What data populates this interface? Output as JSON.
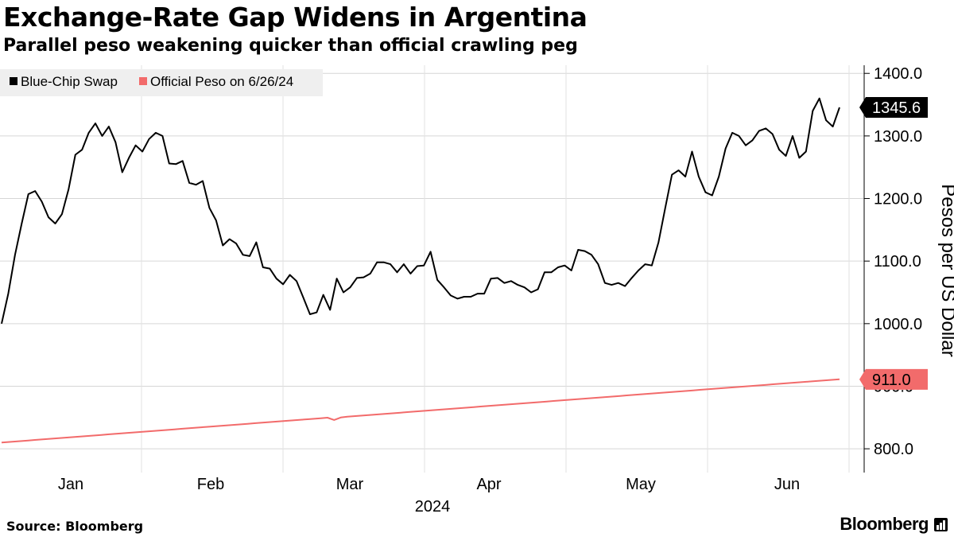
{
  "header": {
    "title": "Exchange-Rate Gap Widens in Argentina",
    "subtitle": "Parallel peso weakening quicker than official crawling peg"
  },
  "footer": {
    "source": "Source: Bloomberg",
    "brand": "Bloomberg"
  },
  "chart_data": {
    "type": "line",
    "title": "Exchange-Rate Gap Widens in Argentina",
    "subtitle": "Parallel peso weakening quicker than official crawling peg",
    "xlabel": "2024",
    "ylabel": "Pesos per US Dollar",
    "ylim": [
      762,
      1413
    ],
    "yticks": [
      800,
      900,
      1000,
      1100,
      1200,
      1300,
      1400
    ],
    "ytick_labels": [
      "800.0",
      "900.0",
      "1000.0",
      "1100.0",
      "1200.0",
      "1300.0",
      "1400.0"
    ],
    "xtick_labels": [
      "Jan",
      "Feb",
      "Mar",
      "Apr",
      "May",
      "Jun"
    ],
    "x_axis_year": "2024",
    "legend_position": "top-left",
    "grid": true,
    "series": [
      {
        "name": "Blue-Chip Swap",
        "color": "#000000",
        "last_value_label": "1345.6",
        "values": [
          1000,
          1048,
          1110,
          1160,
          1207,
          1212,
          1195,
          1170,
          1160,
          1175,
          1215,
          1270,
          1278,
          1305,
          1320,
          1300,
          1315,
          1290,
          1242,
          1265,
          1285,
          1275,
          1295,
          1305,
          1300,
          1256,
          1255,
          1260,
          1225,
          1222,
          1228,
          1185,
          1165,
          1125,
          1135,
          1128,
          1110,
          1108,
          1130,
          1090,
          1088,
          1072,
          1063,
          1078,
          1068,
          1042,
          1015,
          1018,
          1046,
          1022,
          1072,
          1050,
          1058,
          1073,
          1074,
          1080,
          1098,
          1098,
          1095,
          1082,
          1095,
          1080,
          1092,
          1093,
          1115,
          1070,
          1058,
          1045,
          1040,
          1043,
          1043,
          1048,
          1048,
          1072,
          1073,
          1065,
          1068,
          1062,
          1058,
          1050,
          1055,
          1082,
          1082,
          1090,
          1093,
          1085,
          1118,
          1116,
          1110,
          1095,
          1065,
          1062,
          1065,
          1060,
          1073,
          1085,
          1095,
          1093,
          1130,
          1185,
          1238,
          1245,
          1235,
          1275,
          1235,
          1210,
          1205,
          1235,
          1280,
          1305,
          1300,
          1285,
          1293,
          1308,
          1312,
          1303,
          1278,
          1268,
          1300,
          1265,
          1275,
          1340,
          1360,
          1325,
          1315,
          1345.6
        ]
      },
      {
        "name": "Official Peso on 6/26/24",
        "color": "#f26b6b",
        "last_value_label": "911.0",
        "values": [
          810,
          810.8,
          811.6,
          812.4,
          813.2,
          814.1,
          814.9,
          815.7,
          816.5,
          817.3,
          818.1,
          818.9,
          819.7,
          820.5,
          821.3,
          822.1,
          823,
          823.8,
          824.6,
          825.4,
          826.2,
          827,
          827.8,
          828.6,
          829.4,
          830.2,
          831,
          831.9,
          832.7,
          833.5,
          834.3,
          835.1,
          835.9,
          836.7,
          837.5,
          838.3,
          839.1,
          839.9,
          840.8,
          841.6,
          842.4,
          843.2,
          844,
          844.8,
          845.6,
          846.4,
          847.2,
          848,
          848.8,
          849.7,
          846,
          850,
          851.3,
          852.1,
          852.9,
          853.7,
          854.5,
          855.3,
          856.1,
          856.9,
          857.7,
          858.6,
          859.4,
          860.2,
          861,
          861.8,
          862.6,
          863.4,
          864.2,
          865,
          865.8,
          866.6,
          867.5,
          868.3,
          869.1,
          869.9,
          870.7,
          871.5,
          872.3,
          873.1,
          873.9,
          874.7,
          875.5,
          876.4,
          877.2,
          878,
          878.8,
          879.6,
          880.4,
          881.2,
          882,
          882.8,
          883.6,
          884.4,
          885.3,
          886.1,
          886.9,
          887.7,
          888.5,
          889.3,
          890.1,
          890.9,
          891.7,
          892.5,
          893.3,
          894.2,
          895,
          895.8,
          896.6,
          897.4,
          898.2,
          899,
          899.8,
          900.6,
          901.4,
          902.2,
          903.1,
          903.9,
          904.7,
          905.5,
          906.3,
          907.1,
          907.9,
          908.7,
          909.5,
          910.3,
          911
        ]
      }
    ]
  }
}
